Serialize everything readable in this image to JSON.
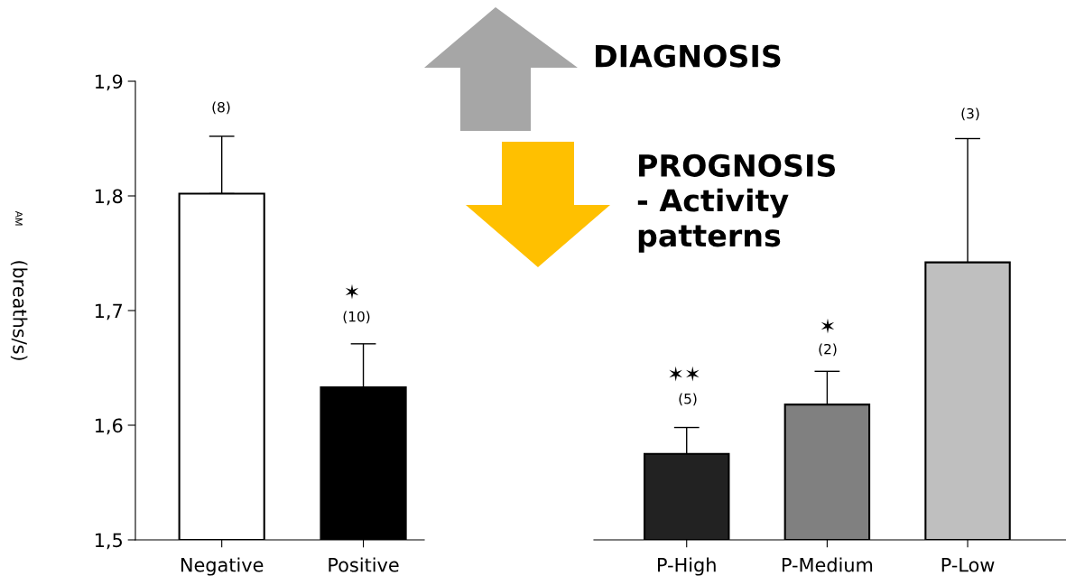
{
  "chart_data": [
    {
      "type": "bar",
      "ylabel": "(breaths/s)",
      "categories": [
        "Negative",
        "Positive"
      ],
      "values": [
        1.802,
        1.633
      ],
      "colors": [
        "#ffffff",
        "#000000"
      ],
      "errors": [
        [
          1.802,
          1.852
        ],
        [
          1.633,
          1.671
        ]
      ],
      "ylim": [
        1.5,
        1.9
      ],
      "yticks": [
        {
          "value": 1.5,
          "label": "1,5"
        },
        {
          "value": 1.6,
          "label": "1,6"
        },
        {
          "value": 1.7,
          "label": "1,7"
        },
        {
          "value": 1.8,
          "label": "1,8"
        },
        {
          "value": 1.9,
          "label": "1,9"
        }
      ],
      "annotations": [
        "AM",
        "DIAGNOSIS",
        "(8)",
        "✶",
        "(10)"
      ]
    },
    {
      "type": "bar",
      "categories": [
        "P-High",
        "P-Medium",
        "P-Low"
      ],
      "values": [
        1.575,
        1.618,
        1.742
      ],
      "colors": [
        "#222222",
        "#808080",
        "#bfbfbf"
      ],
      "errors": [
        [
          1.575,
          1.598
        ],
        [
          1.618,
          1.647
        ],
        [
          1.742,
          1.85
        ]
      ],
      "ylim": [
        1.5,
        1.9
      ],
      "tick_labels": "x",
      "annotations": [
        "PROGNOSIS\n- Activity\npatterns",
        "✶✶",
        "(5)",
        "✶",
        "(2)",
        "(3)"
      ]
    }
  ]
}
